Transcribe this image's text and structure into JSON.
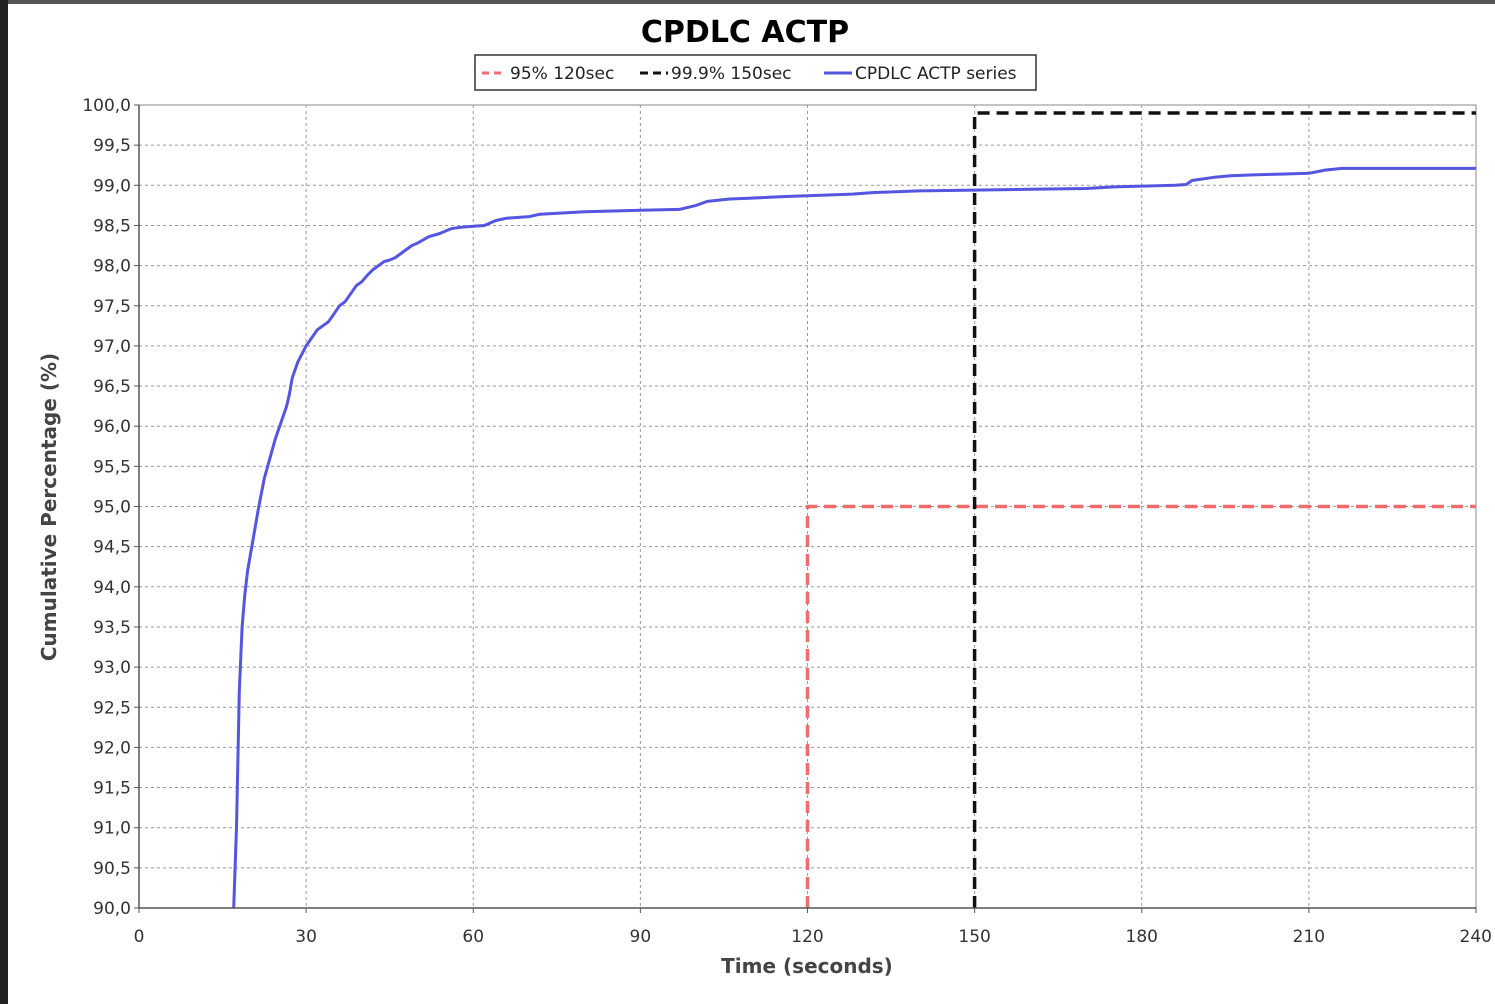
{
  "chart_data": {
    "type": "line",
    "title": "CPDLC ACTP",
    "xlabel": "Time (seconds)",
    "ylabel": "Cumulative Percentage (%)",
    "xlim": [
      0,
      240
    ],
    "ylim": [
      90,
      100
    ],
    "x_ticks": [
      "0",
      "30",
      "60",
      "90",
      "120",
      "150",
      "180",
      "210",
      "240"
    ],
    "y_ticks": [
      "90,0",
      "90,5",
      "91,0",
      "91,5",
      "92,0",
      "92,5",
      "93,0",
      "93,5",
      "94,0",
      "94,5",
      "95,0",
      "95,5",
      "96,0",
      "96,5",
      "97,0",
      "97,5",
      "98,0",
      "98,5",
      "99,0",
      "99,5",
      "100,0"
    ],
    "grid": true,
    "legend_position": "top-center",
    "series": [
      {
        "name": "95% 120sec",
        "color": "#f06b6b",
        "style": "dashed",
        "points": [
          [
            120,
            90
          ],
          [
            120,
            95
          ],
          [
            240,
            95
          ]
        ]
      },
      {
        "name": "99.9% 150sec",
        "color": "#111111",
        "style": "dashed",
        "points": [
          [
            150,
            90
          ],
          [
            150,
            99.9
          ],
          [
            240,
            99.9
          ]
        ]
      },
      {
        "name": "CPDLC ACTP series",
        "color": "#5555e0",
        "style": "solid",
        "points": [
          [
            17,
            90.0
          ],
          [
            17.5,
            91.0
          ],
          [
            18,
            92.7
          ],
          [
            18.5,
            93.5
          ],
          [
            19,
            93.9
          ],
          [
            19.5,
            94.2
          ],
          [
            20.5,
            94.6
          ],
          [
            21.5,
            95.0
          ],
          [
            22.5,
            95.35
          ],
          [
            23.5,
            95.6
          ],
          [
            24.5,
            95.85
          ],
          [
            25.5,
            96.05
          ],
          [
            26.5,
            96.25
          ],
          [
            27,
            96.4
          ],
          [
            27.5,
            96.6
          ],
          [
            28.5,
            96.8
          ],
          [
            30,
            97.0
          ],
          [
            31,
            97.1
          ],
          [
            32,
            97.2
          ],
          [
            33,
            97.25
          ],
          [
            34,
            97.3
          ],
          [
            35,
            97.4
          ],
          [
            36,
            97.5
          ],
          [
            37,
            97.55
          ],
          [
            38,
            97.65
          ],
          [
            39,
            97.75
          ],
          [
            40,
            97.8
          ],
          [
            41,
            97.88
          ],
          [
            42,
            97.95
          ],
          [
            43,
            98.0
          ],
          [
            44,
            98.05
          ],
          [
            45,
            98.07
          ],
          [
            46,
            98.1
          ],
          [
            47,
            98.15
          ],
          [
            48,
            98.2
          ],
          [
            49,
            98.25
          ],
          [
            50,
            98.28
          ],
          [
            51,
            98.32
          ],
          [
            52,
            98.36
          ],
          [
            54,
            98.4
          ],
          [
            56,
            98.46
          ],
          [
            58,
            98.48
          ],
          [
            60,
            98.49
          ],
          [
            62,
            98.5
          ],
          [
            64,
            98.56
          ],
          [
            66,
            98.59
          ],
          [
            70,
            98.61
          ],
          [
            72,
            98.64
          ],
          [
            80,
            98.67
          ],
          [
            90,
            98.69
          ],
          [
            97,
            98.7
          ],
          [
            100,
            98.75
          ],
          [
            102,
            98.8
          ],
          [
            106,
            98.83
          ],
          [
            110,
            98.84
          ],
          [
            116,
            98.86
          ],
          [
            120,
            98.87
          ],
          [
            128,
            98.89
          ],
          [
            132,
            98.91
          ],
          [
            140,
            98.93
          ],
          [
            150,
            98.94
          ],
          [
            160,
            98.95
          ],
          [
            170,
            98.96
          ],
          [
            175,
            98.98
          ],
          [
            180,
            98.99
          ],
          [
            186,
            99.0
          ],
          [
            188,
            99.01
          ],
          [
            189,
            99.06
          ],
          [
            193,
            99.1
          ],
          [
            196,
            99.12
          ],
          [
            200,
            99.13
          ],
          [
            205,
            99.14
          ],
          [
            210,
            99.15
          ],
          [
            213,
            99.19
          ],
          [
            216,
            99.21
          ],
          [
            220,
            99.21
          ],
          [
            240,
            99.21
          ]
        ]
      }
    ]
  }
}
